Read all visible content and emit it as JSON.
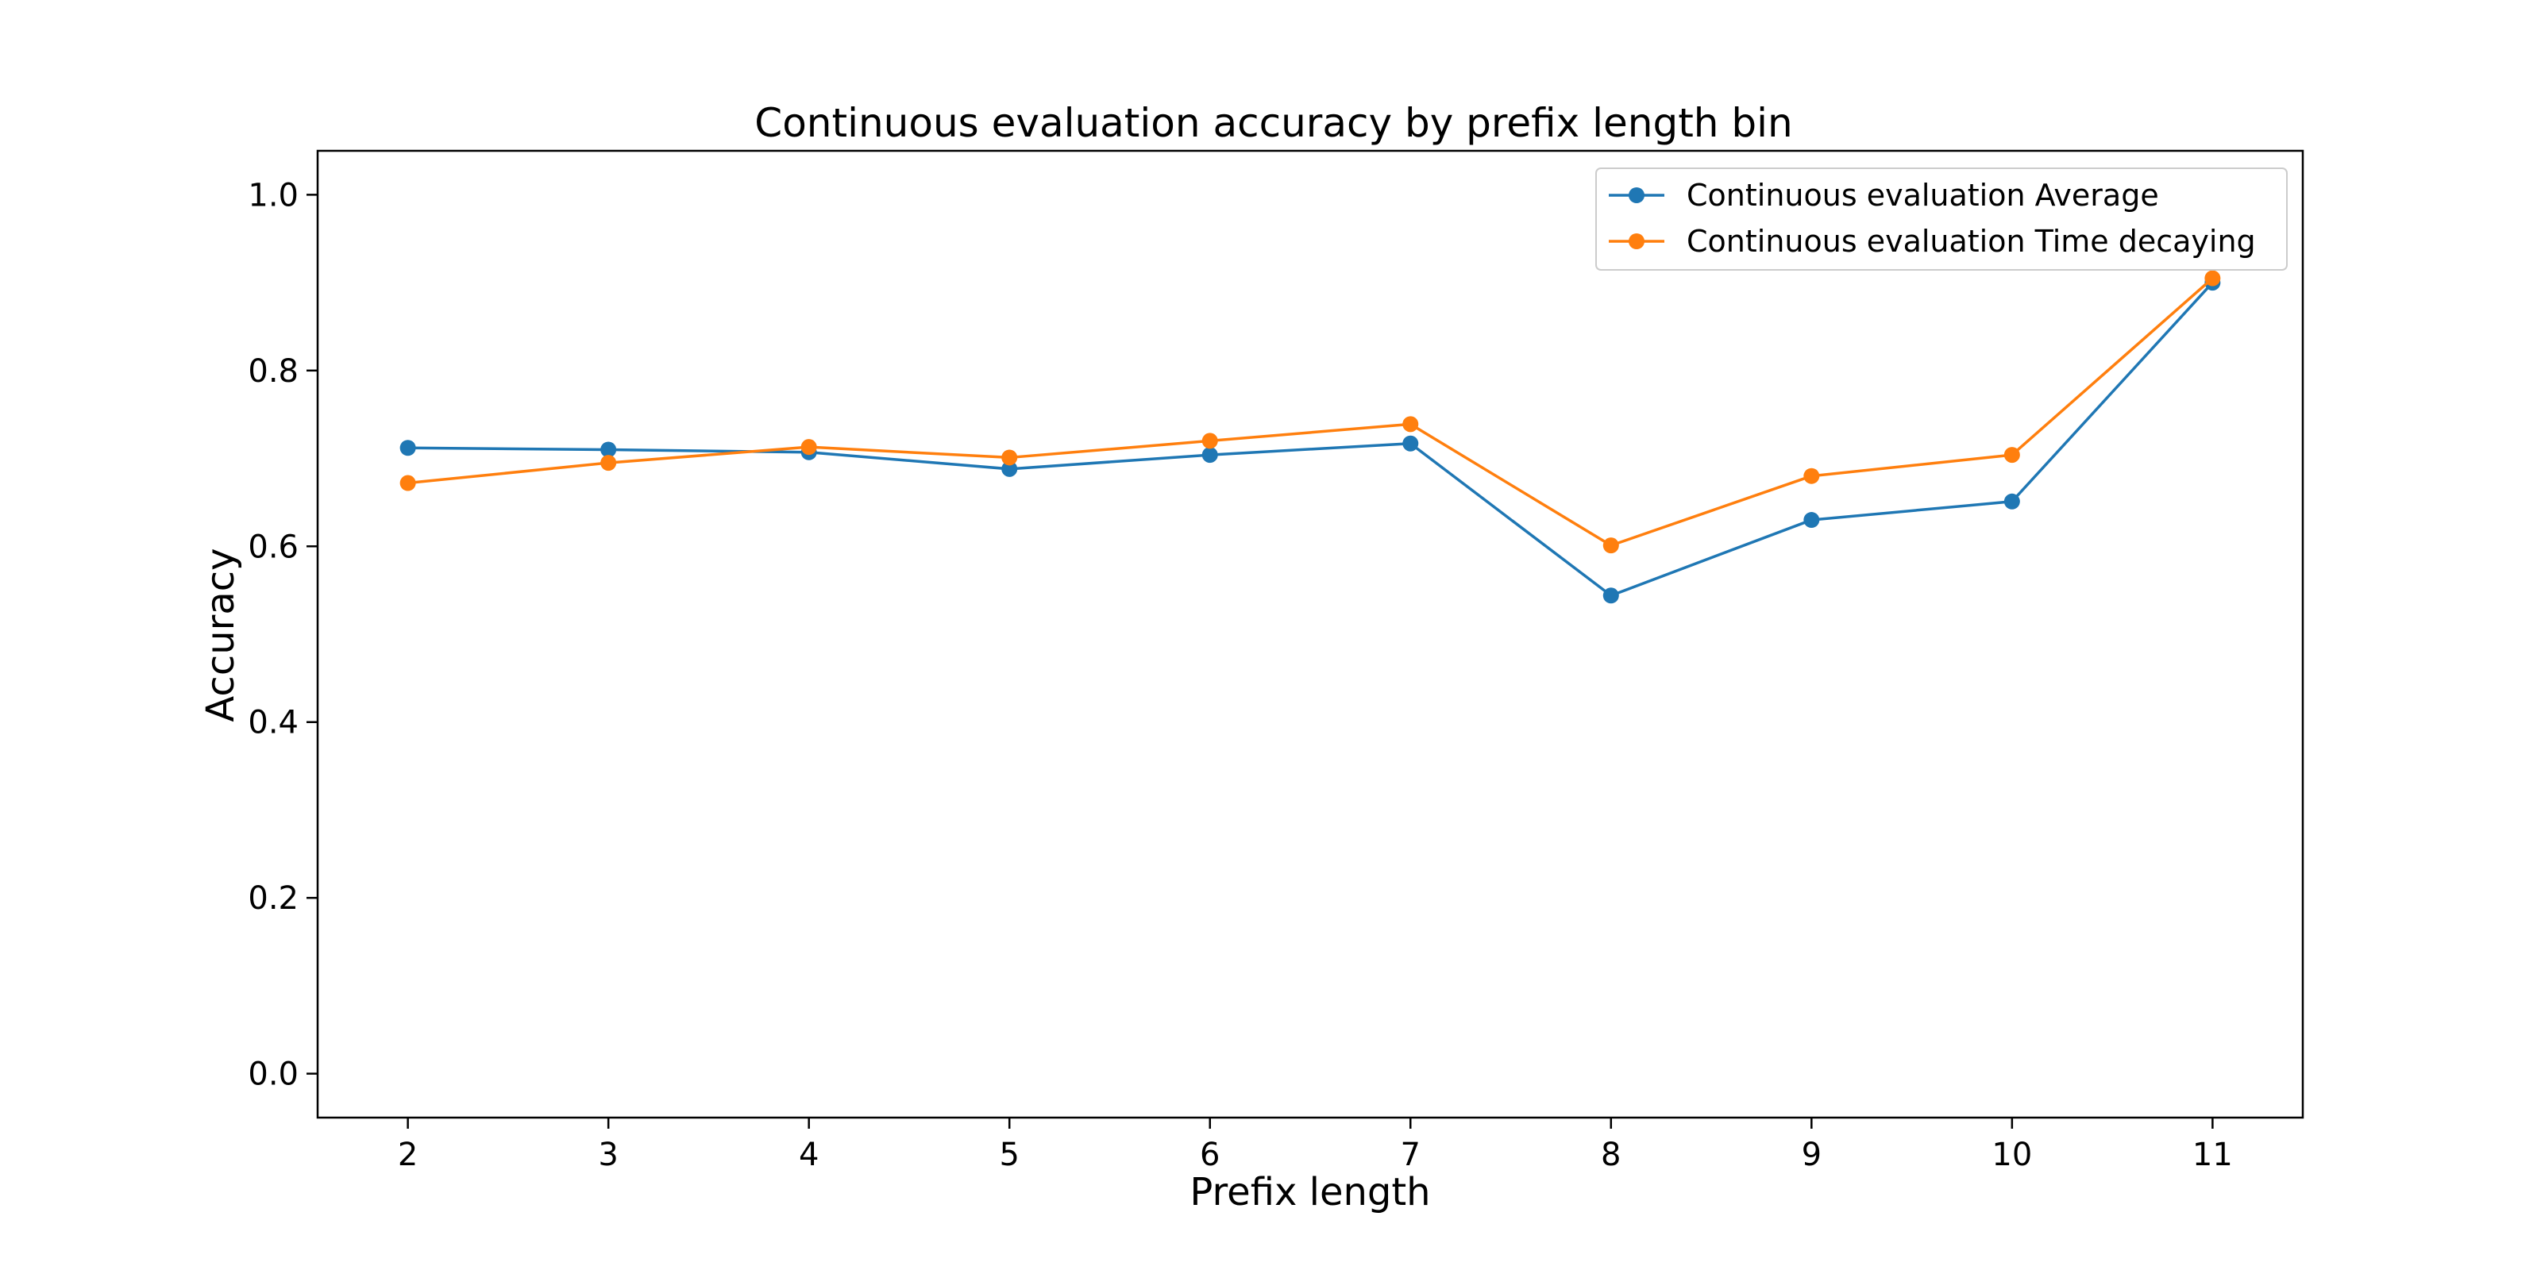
{
  "chart_data": {
    "type": "line",
    "title": "Continuous evaluation accuracy by prefix length bin",
    "xlabel": "Prefix length",
    "ylabel": "Accuracy",
    "x": [
      2,
      3,
      4,
      5,
      6,
      7,
      8,
      9,
      10,
      11
    ],
    "xlim": [
      1.55,
      11.45
    ],
    "ylim": [
      -0.05,
      1.05
    ],
    "yticks": [
      0.0,
      0.2,
      0.4,
      0.6,
      0.8,
      1.0
    ],
    "ytick_labels": [
      "0.0",
      "0.2",
      "0.4",
      "0.6",
      "0.8",
      "1.0"
    ],
    "xtick_labels": [
      "2",
      "3",
      "4",
      "5",
      "6",
      "7",
      "8",
      "9",
      "10",
      "11"
    ],
    "grid": false,
    "legend_position": "top-right",
    "series": [
      {
        "name": "Continuous evaluation Average",
        "color": "#1f77b4",
        "values": [
          0.712,
          0.71,
          0.707,
          0.688,
          0.704,
          0.717,
          0.544,
          0.63,
          0.651,
          0.9
        ]
      },
      {
        "name": "Continuous evaluation Time decaying",
        "color": "#ff7f0e",
        "values": [
          0.672,
          0.695,
          0.713,
          0.701,
          0.72,
          0.739,
          0.601,
          0.68,
          0.704,
          0.905
        ]
      }
    ]
  }
}
